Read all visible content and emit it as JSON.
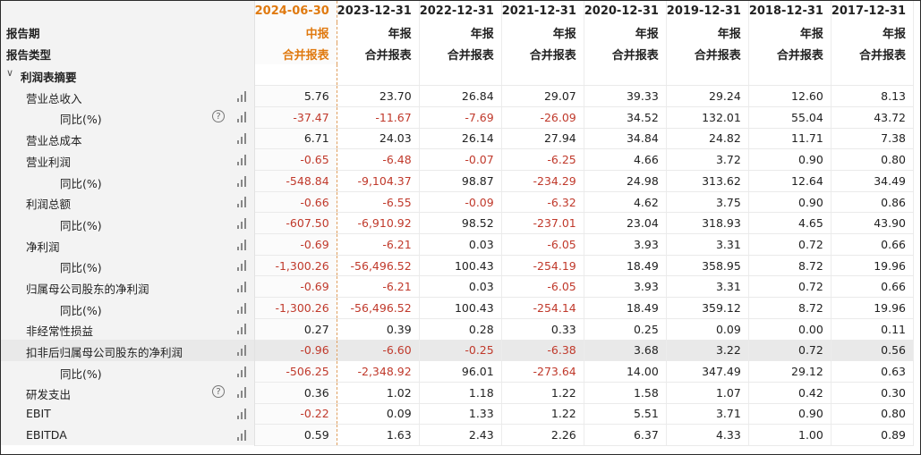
{
  "header": {
    "report_period_label": "报告期",
    "report_type_label": "报告类型",
    "periods": [
      "2024-06-30",
      "2023-12-31",
      "2022-12-31",
      "2021-12-31",
      "2020-12-31",
      "2019-12-31",
      "2018-12-31",
      "2017-12-31"
    ],
    "period_types": [
      "中报",
      "年报",
      "年报",
      "年报",
      "年报",
      "年报",
      "年报",
      "年报"
    ],
    "report_kinds": [
      "合并报表",
      "合并报表",
      "合并报表",
      "合并报表",
      "合并报表",
      "合并报表",
      "合并报表",
      "合并报表"
    ]
  },
  "section": {
    "arrow": "∨",
    "title": "利润表摘要"
  },
  "icons": {
    "help": "help-circle-icon",
    "chart": "bar-chart-icon",
    "help_glyph": "?"
  },
  "colors": {
    "accent": "#e07a10",
    "negative": "#c0392b",
    "highlight_row": "#e9e9e9"
  },
  "rows": [
    {
      "label": "营业总收入",
      "level": 1,
      "help": false,
      "values": [
        "5.76",
        "23.70",
        "26.84",
        "29.07",
        "39.33",
        "29.24",
        "12.60",
        "8.13"
      ]
    },
    {
      "label": "同比(%)",
      "level": 2,
      "help": true,
      "values": [
        "-37.47",
        "-11.67",
        "-7.69",
        "-26.09",
        "34.52",
        "132.01",
        "55.04",
        "43.72"
      ]
    },
    {
      "label": "营业总成本",
      "level": 1,
      "help": false,
      "values": [
        "6.71",
        "24.03",
        "26.14",
        "27.94",
        "34.84",
        "24.82",
        "11.71",
        "7.38"
      ]
    },
    {
      "label": "营业利润",
      "level": 1,
      "help": false,
      "values": [
        "-0.65",
        "-6.48",
        "-0.07",
        "-6.25",
        "4.66",
        "3.72",
        "0.90",
        "0.80"
      ]
    },
    {
      "label": "同比(%)",
      "level": 2,
      "help": false,
      "values": [
        "-548.84",
        "-9,104.37",
        "98.87",
        "-234.29",
        "24.98",
        "313.62",
        "12.64",
        "34.49"
      ]
    },
    {
      "label": "利润总额",
      "level": 1,
      "help": false,
      "values": [
        "-0.66",
        "-6.55",
        "-0.09",
        "-6.32",
        "4.62",
        "3.75",
        "0.90",
        "0.86"
      ]
    },
    {
      "label": "同比(%)",
      "level": 2,
      "help": false,
      "values": [
        "-607.50",
        "-6,910.92",
        "98.52",
        "-237.01",
        "23.04",
        "318.93",
        "4.65",
        "43.90"
      ]
    },
    {
      "label": "净利润",
      "level": 1,
      "help": false,
      "values": [
        "-0.69",
        "-6.21",
        "0.03",
        "-6.05",
        "3.93",
        "3.31",
        "0.72",
        "0.66"
      ]
    },
    {
      "label": "同比(%)",
      "level": 2,
      "help": false,
      "values": [
        "-1,300.26",
        "-56,496.52",
        "100.43",
        "-254.19",
        "18.49",
        "358.95",
        "8.72",
        "19.96"
      ]
    },
    {
      "label": "归属母公司股东的净利润",
      "level": 1,
      "help": false,
      "values": [
        "-0.69",
        "-6.21",
        "0.03",
        "-6.05",
        "3.93",
        "3.31",
        "0.72",
        "0.66"
      ]
    },
    {
      "label": "同比(%)",
      "level": 2,
      "help": false,
      "values": [
        "-1,300.26",
        "-56,496.52",
        "100.43",
        "-254.14",
        "18.49",
        "359.12",
        "8.72",
        "19.96"
      ]
    },
    {
      "label": "非经常性损益",
      "level": 1,
      "help": false,
      "values": [
        "0.27",
        "0.39",
        "0.28",
        "0.33",
        "0.25",
        "0.09",
        "0.00",
        "0.11"
      ]
    },
    {
      "label": "扣非后归属母公司股东的净利润",
      "level": 1,
      "help": false,
      "highlight": true,
      "values": [
        "-0.96",
        "-6.60",
        "-0.25",
        "-6.38",
        "3.68",
        "3.22",
        "0.72",
        "0.56"
      ]
    },
    {
      "label": "同比(%)",
      "level": 2,
      "help": false,
      "values": [
        "-506.25",
        "-2,348.92",
        "96.01",
        "-273.64",
        "14.00",
        "347.49",
        "29.12",
        "0.63"
      ]
    },
    {
      "label": "研发支出",
      "level": 1,
      "help": true,
      "values": [
        "0.36",
        "1.02",
        "1.18",
        "1.22",
        "1.58",
        "1.07",
        "0.42",
        "0.30"
      ]
    },
    {
      "label": "EBIT",
      "level": 1,
      "help": false,
      "values": [
        "-0.22",
        "0.09",
        "1.33",
        "1.22",
        "5.51",
        "3.71",
        "0.90",
        "0.80"
      ]
    },
    {
      "label": "EBITDA",
      "level": 1,
      "help": false,
      "values": [
        "0.59",
        "1.63",
        "2.43",
        "2.26",
        "6.37",
        "4.33",
        "1.00",
        "0.89"
      ]
    }
  ]
}
